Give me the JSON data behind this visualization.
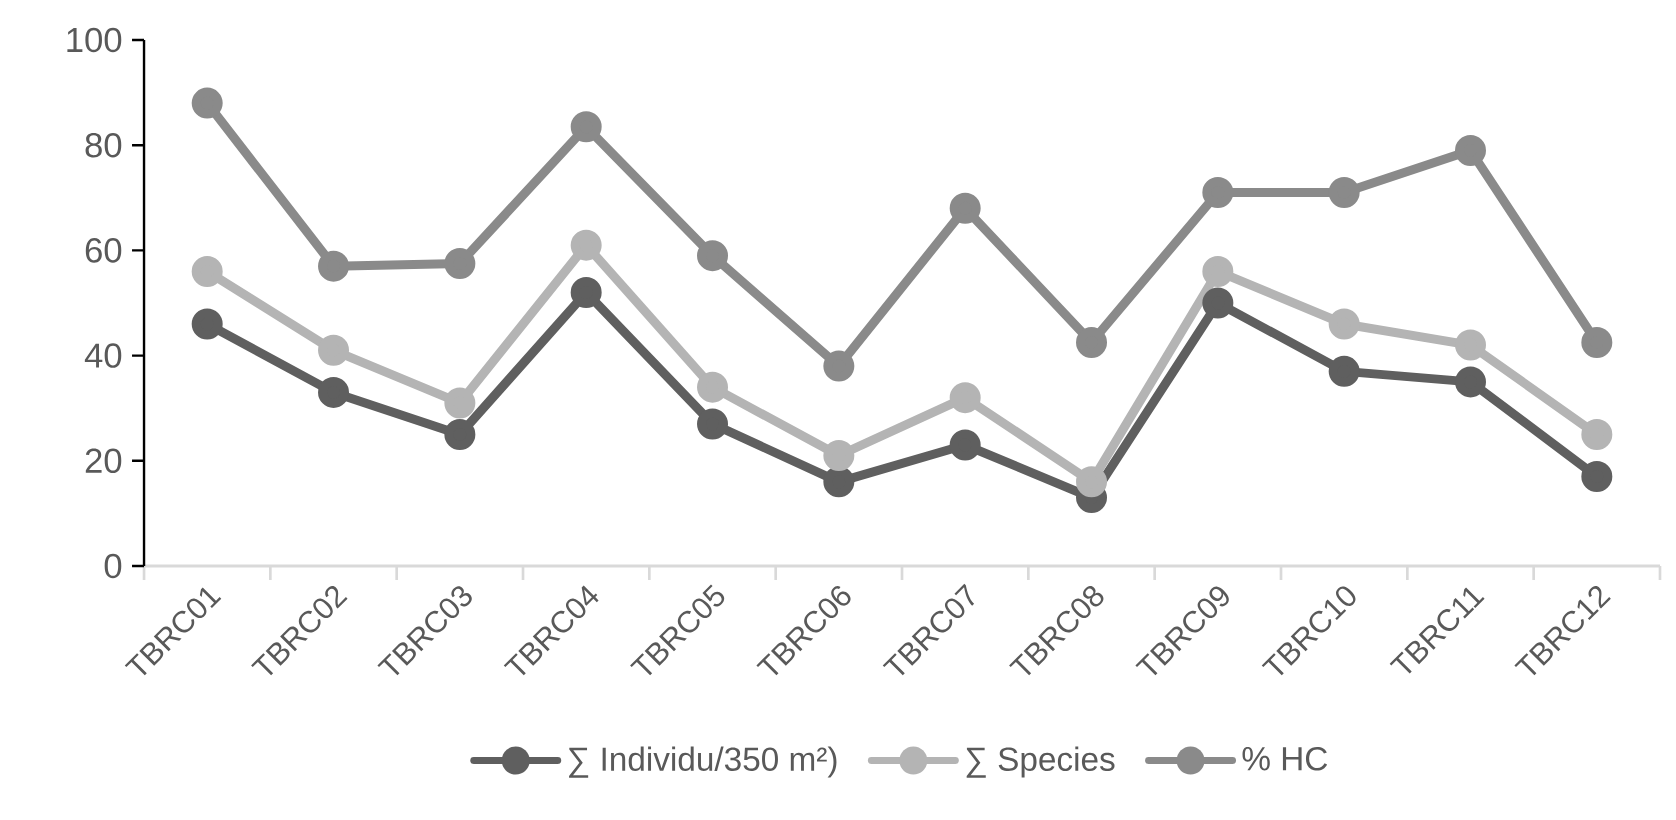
{
  "chart_data": {
    "type": "line",
    "categories": [
      "TBRC01",
      "TBRC02",
      "TBRC03",
      "TBRC04",
      "TBRC05",
      "TBRC06",
      "TBRC07",
      "TBRC08",
      "TBRC09",
      "TBRC10",
      "TBRC11",
      "TBRC12"
    ],
    "series": [
      {
        "name": "∑ Individu/350 m²)",
        "color": "#5f5f5f",
        "values": [
          46,
          33,
          25,
          52,
          27,
          16,
          23,
          13,
          50,
          37,
          35,
          17
        ]
      },
      {
        "name": "∑ Species",
        "color": "#b4b4b4",
        "values": [
          56,
          41,
          31,
          61,
          34,
          21,
          32,
          16,
          56,
          46,
          42,
          25
        ]
      },
      {
        "name": "% HC",
        "color": "#8a8a8a",
        "values": [
          88,
          57,
          57.5,
          83.5,
          59,
          38,
          68,
          42.5,
          71,
          71,
          79,
          42.5
        ]
      }
    ],
    "ylim": [
      0,
      100
    ],
    "yticks": [
      0,
      20,
      40,
      60,
      80,
      100
    ],
    "legend": "bottom",
    "marker": "circle"
  }
}
